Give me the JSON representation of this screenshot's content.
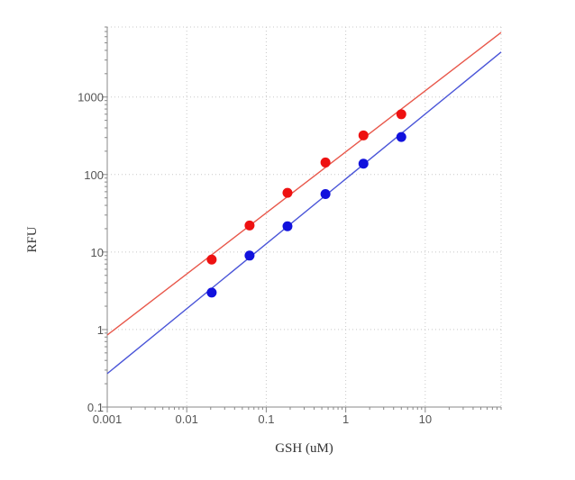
{
  "chart_data": {
    "type": "scatter",
    "xlabel": "GSH (uM)",
    "ylabel": "RFU",
    "x_scale": "log",
    "y_scale": "log",
    "xlim": [
      0.001,
      90
    ],
    "ylim": [
      0.1,
      8000
    ],
    "x_ticks": [
      0.001,
      0.01,
      0.1,
      1,
      10
    ],
    "x_tick_labels": [
      "0.001",
      "0.01",
      "0.1",
      "1",
      "10"
    ],
    "y_ticks": [
      0.1,
      1,
      10,
      100,
      1000
    ],
    "y_tick_labels": [
      "0.1",
      "1",
      "10",
      "100",
      "1000"
    ],
    "grid": true,
    "legend": "none",
    "series": [
      {
        "color": "#ee1111",
        "line_color": "#e8574a",
        "points": [
          {
            "x": 0.0206,
            "y": 8
          },
          {
            "x": 0.0617,
            "y": 22
          },
          {
            "x": 0.185,
            "y": 58
          },
          {
            "x": 0.556,
            "y": 143
          },
          {
            "x": 1.67,
            "y": 320
          },
          {
            "x": 5.0,
            "y": 600
          }
        ],
        "fit": {
          "x": [
            0.001,
            90
          ],
          "y": [
            0.85,
            6800
          ]
        }
      },
      {
        "color": "#1111dd",
        "line_color": "#4a55d8",
        "points": [
          {
            "x": 0.0206,
            "y": 3
          },
          {
            "x": 0.0617,
            "y": 9
          },
          {
            "x": 0.185,
            "y": 21.5
          },
          {
            "x": 0.556,
            "y": 56
          },
          {
            "x": 1.67,
            "y": 138
          },
          {
            "x": 5.0,
            "y": 305
          }
        ],
        "fit": {
          "x": [
            0.001,
            90
          ],
          "y": [
            0.27,
            3800
          ]
        }
      }
    ]
  }
}
